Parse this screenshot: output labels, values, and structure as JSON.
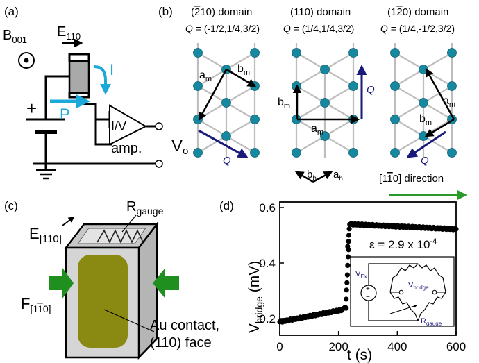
{
  "panels": {
    "a": {
      "label": "(a)",
      "b_field": "B",
      "b_sub": "001",
      "e_field": "E",
      "e_sub": "110",
      "current": "I",
      "polarization": "P",
      "plus": "+",
      "amp_box": "I/V",
      "amp_label": "amp.",
      "vout": "V",
      "vout_sub": "o",
      "colors": {
        "accent": "#1aa9d9",
        "capacitor": "#a9a9a9"
      }
    },
    "b": {
      "label": "(b)",
      "domains": [
        {
          "title_pre": "(",
          "title_bar": "2",
          "title_post": "10) domain",
          "q_label": "Q",
          "q_value": " = (-1/2,1/4,3/2)"
        },
        {
          "title_pre": "(110) domain",
          "title_bar": "",
          "title_post": "",
          "q_label": "Q",
          "q_value": " = (1/4,1/4,3/2)"
        },
        {
          "title_pre": "(1",
          "title_bar": "2",
          "title_post": "0) domain",
          "q_label": "Q",
          "q_value": " = (1/4,-1/2,3/2)"
        }
      ],
      "vec_a": "a",
      "vec_b": "b",
      "sub_m": "m",
      "sub_h": "h",
      "q_vector": "Q",
      "direction_pre": "[1",
      "direction_bar": "1",
      "direction_post": "0] direction",
      "colors": {
        "atom": "#16889f",
        "bond": "#bdbdbd",
        "q_arrow": "#1a1a7a",
        "direction_arrow": "#2a9a2a"
      }
    },
    "c": {
      "label": "(c)",
      "e_field": "E",
      "e_sub": "[110]",
      "gauge": "R",
      "gauge_sub": "gauge",
      "force": "F",
      "force_sub_pre": "[1",
      "force_sub_bar": "1",
      "force_sub_post": "0]",
      "contact_line1": "Au contact,",
      "contact_line2": "(110) face",
      "colors": {
        "face": "#d5d5d5",
        "contact": "#8a8a12",
        "force_arrow": "#1f8f1f"
      }
    },
    "d": {
      "label": "(d)",
      "annotation": "ε = 2.9 x 10",
      "annotation_exp": "-4",
      "inset_vex": "V",
      "inset_vex_sub": "Ex",
      "inset_vbridge": "V",
      "inset_vbridge_sub": "bridge",
      "inset_rgauge": "R",
      "inset_rgauge_sub": "gauge",
      "inset_plus": "+",
      "inset_minus": "−",
      "inset_color": "#1a1a7a"
    }
  },
  "chart_data": {
    "type": "scatter",
    "xlabel": "t (s)",
    "ylabel": "V",
    "ylabel_sub": "bridge",
    "ylabel_unit": " (mV)",
    "xlim": [
      0,
      600
    ],
    "ylim": [
      0.14,
      0.62
    ],
    "xticks": [
      0,
      200,
      400,
      600
    ],
    "yticks": [
      0.2,
      0.4,
      0.6
    ],
    "series": [
      {
        "segments": [
          {
            "t0": 0,
            "t1": 215,
            "v0": 0.188,
            "v1": 0.232,
            "n": 72
          },
          {
            "t0": 219,
            "t1": 226,
            "v0": 0.238,
            "v1": 0.238,
            "n": 3
          },
          {
            "t0": 226,
            "t1": 234,
            "v0": 0.27,
            "v1": 0.45,
            "n": 7
          },
          {
            "t0": 231,
            "t1": 234,
            "v0": 0.46,
            "v1": 0.475,
            "n": 2
          },
          {
            "t0": 235,
            "t1": 238,
            "v0": 0.5,
            "v1": 0.54,
            "n": 3
          },
          {
            "t0": 240,
            "t1": 600,
            "v0": 0.54,
            "v1": 0.522,
            "n": 110
          }
        ]
      }
    ]
  }
}
